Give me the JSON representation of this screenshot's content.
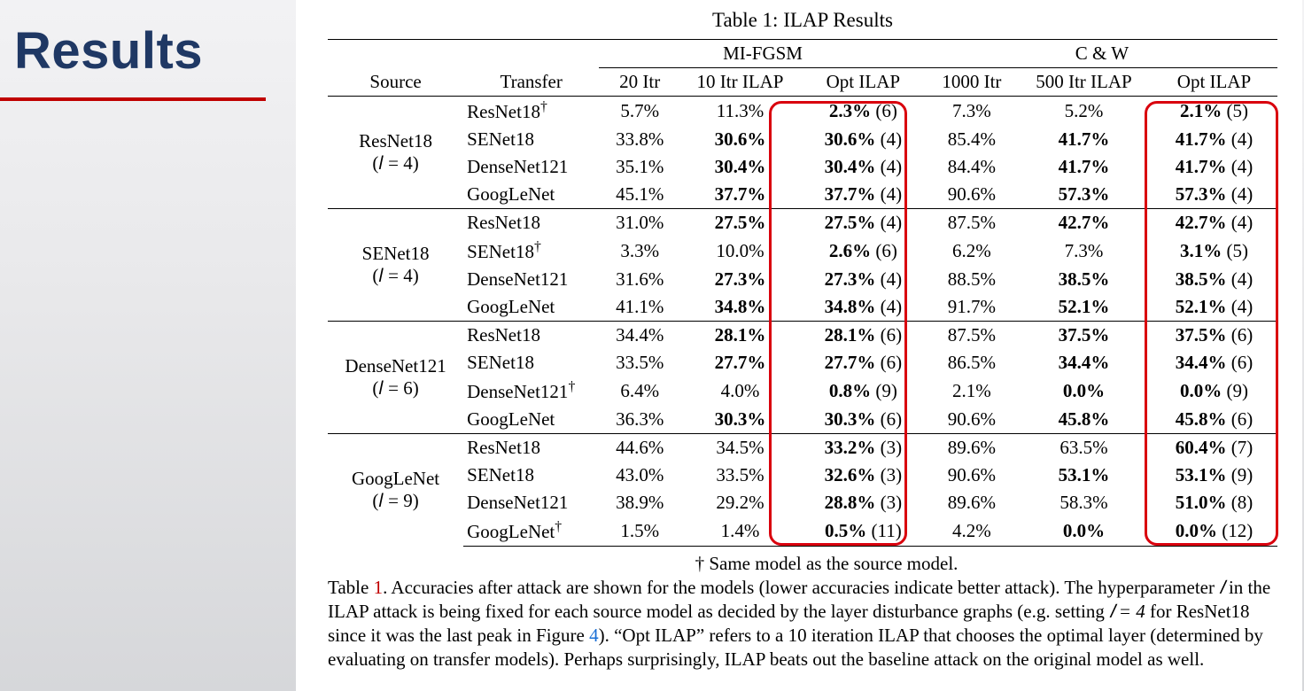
{
  "slide": {
    "heading": "Results",
    "heading_color": "#1f3864",
    "underline_color": "#c00000",
    "background_gradient": [
      "#f2f2f4",
      "#e9e9eb",
      "#d6d7da"
    ]
  },
  "table": {
    "caption": "Table 1:  ILAP Results",
    "super_headers": {
      "mi": "MI-FGSM",
      "cw": "C & W"
    },
    "col_headers": {
      "source": "Source",
      "transfer": "Transfer",
      "mi_20": "20 Itr",
      "mi_10_ilap": "10 Itr ILAP",
      "mi_opt": "Opt ILAP",
      "cw_1000": "1000 Itr",
      "cw_500_ilap": "500 Itr ILAP",
      "cw_opt": "Opt ILAP"
    },
    "groups": [
      {
        "source_lines": [
          "ResNet18",
          "(𝑙 = 4)"
        ],
        "rows": [
          {
            "transfer": "ResNet18",
            "dagger": true,
            "c1": "5.7%",
            "c2": "11.3%",
            "c3": "2.3% (6)",
            "c4": "7.3%",
            "c5": "5.2%",
            "c6": "2.1% (5)",
            "b": {
              "c3": true,
              "c6": true
            }
          },
          {
            "transfer": "SENet18",
            "dagger": false,
            "c1": "33.8%",
            "c2": "30.6%",
            "c3": "30.6% (4)",
            "c4": "85.4%",
            "c5": "41.7%",
            "c6": "41.7% (4)",
            "b": {
              "c2": true,
              "c3": true,
              "c5": true,
              "c6": true
            }
          },
          {
            "transfer": "DenseNet121",
            "dagger": false,
            "c1": "35.1%",
            "c2": "30.4%",
            "c3": "30.4% (4)",
            "c4": "84.4%",
            "c5": "41.7%",
            "c6": "41.7% (4)",
            "b": {
              "c2": true,
              "c3": true,
              "c5": true,
              "c6": true
            }
          },
          {
            "transfer": "GoogLeNet",
            "dagger": false,
            "c1": "45.1%",
            "c2": "37.7%",
            "c3": "37.7% (4)",
            "c4": "90.6%",
            "c5": "57.3%",
            "c6": "57.3% (4)",
            "b": {
              "c2": true,
              "c3": true,
              "c5": true,
              "c6": true
            }
          }
        ]
      },
      {
        "source_lines": [
          "SENet18",
          "(𝑙 = 4)"
        ],
        "rows": [
          {
            "transfer": "ResNet18",
            "dagger": false,
            "c1": "31.0%",
            "c2": "27.5%",
            "c3": "27.5% (4)",
            "c4": "87.5%",
            "c5": "42.7%",
            "c6": "42.7% (4)",
            "b": {
              "c2": true,
              "c3": true,
              "c5": true,
              "c6": true
            }
          },
          {
            "transfer": "SENet18",
            "dagger": true,
            "c1": "3.3%",
            "c2": "10.0%",
            "c3": "2.6% (6)",
            "c4": "6.2%",
            "c5": "7.3%",
            "c6": "3.1% (5)",
            "b": {
              "c3": true,
              "c6": true
            }
          },
          {
            "transfer": "DenseNet121",
            "dagger": false,
            "c1": "31.6%",
            "c2": "27.3%",
            "c3": "27.3% (4)",
            "c4": "88.5%",
            "c5": "38.5%",
            "c6": "38.5% (4)",
            "b": {
              "c2": true,
              "c3": true,
              "c5": true,
              "c6": true
            }
          },
          {
            "transfer": "GoogLeNet",
            "dagger": false,
            "c1": "41.1%",
            "c2": "34.8%",
            "c3": "34.8% (4)",
            "c4": "91.7%",
            "c5": "52.1%",
            "c6": "52.1% (4)",
            "b": {
              "c2": true,
              "c3": true,
              "c5": true,
              "c6": true
            }
          }
        ]
      },
      {
        "source_lines": [
          "DenseNet121",
          "(𝑙 = 6)"
        ],
        "rows": [
          {
            "transfer": "ResNet18",
            "dagger": false,
            "c1": "34.4%",
            "c2": "28.1%",
            "c3": "28.1% (6)",
            "c4": "87.5%",
            "c5": "37.5%",
            "c6": "37.5% (6)",
            "b": {
              "c2": true,
              "c3": true,
              "c5": true,
              "c6": true
            }
          },
          {
            "transfer": "SENet18",
            "dagger": false,
            "c1": "33.5%",
            "c2": "27.7%",
            "c3": "27.7% (6)",
            "c4": "86.5%",
            "c5": "34.4%",
            "c6": "34.4% (6)",
            "b": {
              "c2": true,
              "c3": true,
              "c5": true,
              "c6": true
            }
          },
          {
            "transfer": "DenseNet121",
            "dagger": true,
            "c1": "6.4%",
            "c2": "4.0%",
            "c3": "0.8% (9)",
            "c4": "2.1%",
            "c5": "0.0%",
            "c6": "0.0% (9)",
            "b": {
              "c3": true,
              "c5": true,
              "c6": true
            }
          },
          {
            "transfer": "GoogLeNet",
            "dagger": false,
            "c1": "36.3%",
            "c2": "30.3%",
            "c3": "30.3% (6)",
            "c4": "90.6%",
            "c5": "45.8%",
            "c6": "45.8% (6)",
            "b": {
              "c2": true,
              "c3": true,
              "c5": true,
              "c6": true
            }
          }
        ]
      },
      {
        "source_lines": [
          "GoogLeNet",
          "(𝑙 = 9)"
        ],
        "rows": [
          {
            "transfer": "ResNet18",
            "dagger": false,
            "c1": "44.6%",
            "c2": "34.5%",
            "c3": "33.2% (3)",
            "c4": "89.6%",
            "c5": "63.5%",
            "c6": "60.4% (7)",
            "b": {
              "c3": true,
              "c6": true
            }
          },
          {
            "transfer": "SENet18",
            "dagger": false,
            "c1": "43.0%",
            "c2": "33.5%",
            "c3": "32.6% (3)",
            "c4": "90.6%",
            "c5": "53.1%",
            "c6": "53.1% (9)",
            "b": {
              "c3": true,
              "c5": true,
              "c6": true
            }
          },
          {
            "transfer": "DenseNet121",
            "dagger": false,
            "c1": "38.9%",
            "c2": "29.2%",
            "c3": "28.8% (3)",
            "c4": "89.6%",
            "c5": "58.3%",
            "c6": "51.0% (8)",
            "b": {
              "c3": true,
              "c6": true
            }
          },
          {
            "transfer": "GoogLeNet",
            "dagger": true,
            "c1": "1.5%",
            "c2": "1.4%",
            "c3": "0.5% (11)",
            "c4": "4.2%",
            "c5": "0.0%",
            "c6": "0.0% (12)",
            "b": {
              "c3": true,
              "c5": true,
              "c6": true
            }
          }
        ]
      }
    ],
    "highlight_color": "#d9000d"
  },
  "footnote": {
    "dagger_text": "† Same model as the source model.",
    "caption_prefix": "Table ",
    "caption_ref": "1",
    "caption_body_1": ". Accuracies after attack are shown for the models (lower accuracies indicate better attack). The hyperparameter ",
    "caption_l": "𝑙",
    "caption_body_2": " in the ILAP attack is being fixed for each source model as decided by the layer disturbance graphs (e.g. setting ",
    "caption_set": "𝑙 = 4",
    "caption_body_3": " for ResNet18 since it was the last peak in Figure ",
    "caption_fig_ref": "4",
    "caption_body_4": "). “Opt ILAP” refers to a 10 iteration ILAP that chooses the optimal layer (determined by evaluating on transfer models). Perhaps surprisingly, ILAP beats out the baseline attack on the original model as well."
  }
}
